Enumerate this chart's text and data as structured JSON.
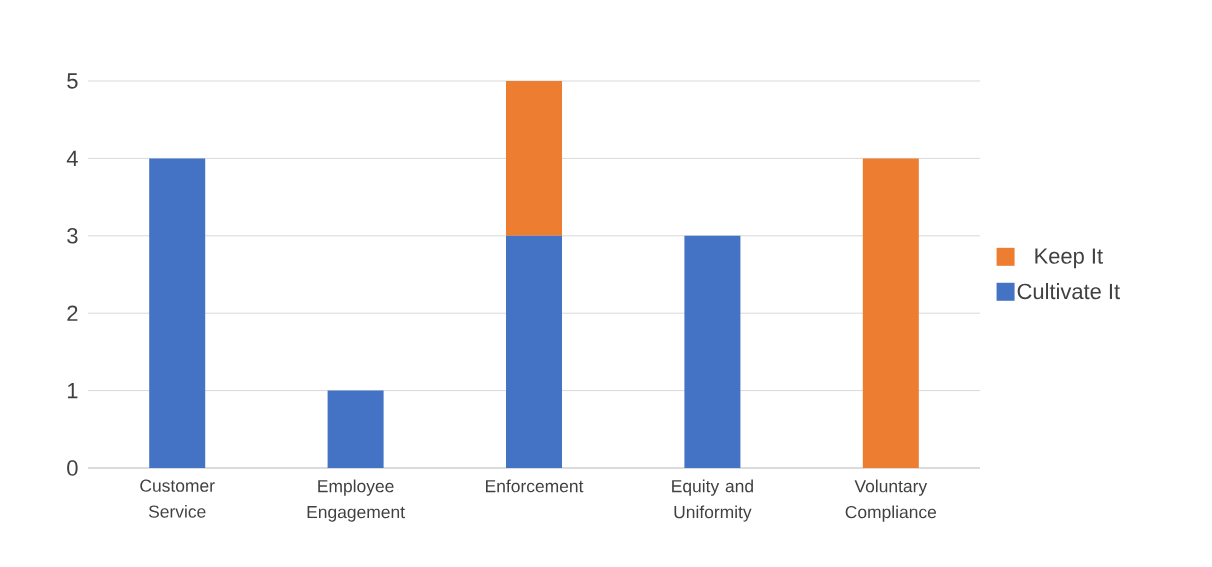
{
  "chart_data": {
    "type": "bar",
    "stacked": true,
    "categories": [
      "Customer Service",
      "Employee Engagement",
      "Enforcement",
      "Equity and Uniformity",
      "Voluntary Compliance"
    ],
    "series": [
      {
        "name": "Cultivate It",
        "color": "#4472c4",
        "values": [
          4,
          1,
          3,
          3,
          0
        ]
      },
      {
        "name": "Keep It",
        "color": "#ed7d31",
        "values": [
          0,
          0,
          2,
          0,
          4
        ]
      }
    ],
    "ylim": [
      0,
      5
    ],
    "yticks": [
      0,
      1,
      2,
      3,
      4,
      5
    ],
    "grid": "y",
    "legend": "right"
  }
}
